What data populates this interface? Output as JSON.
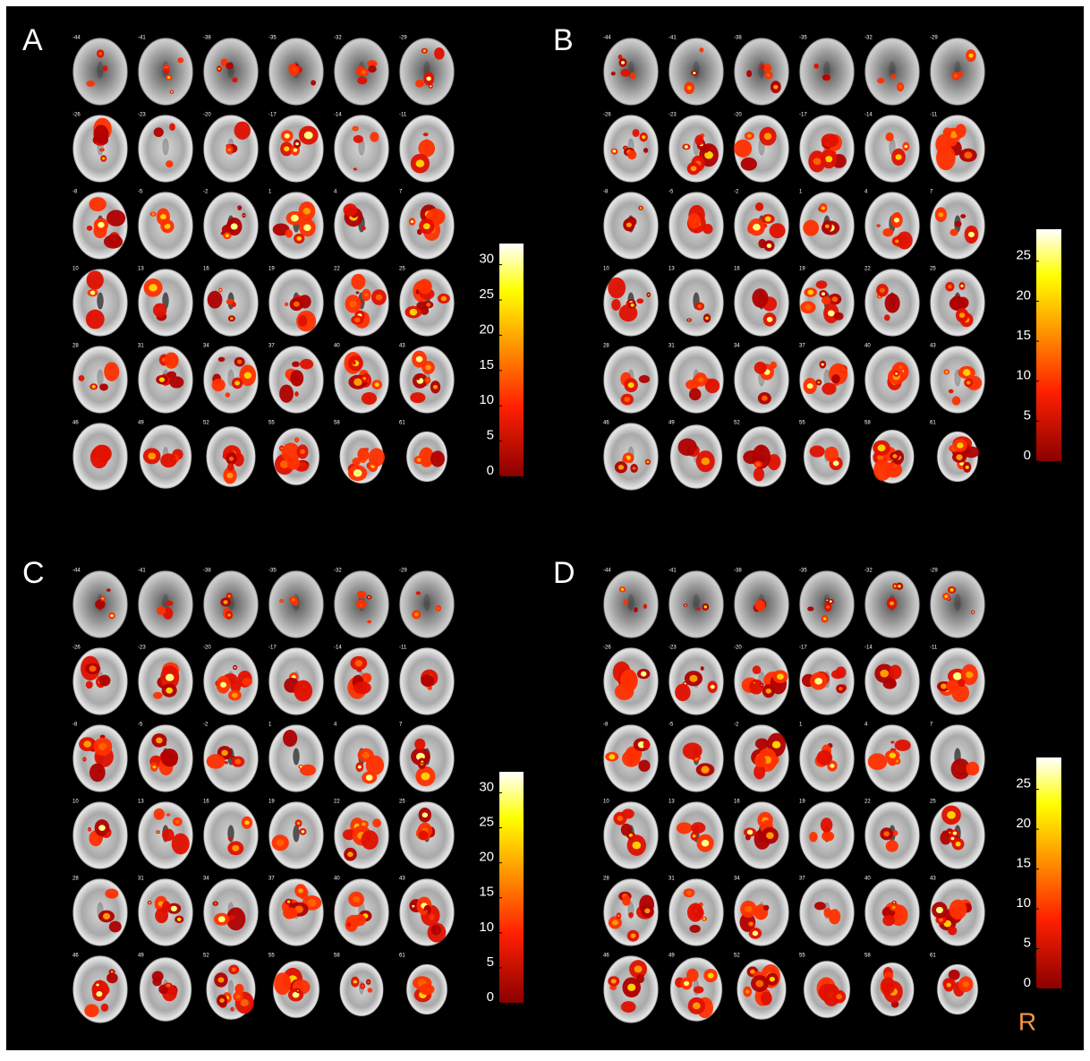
{
  "slices": [
    -44,
    -41,
    -38,
    -35,
    -32,
    -29,
    -26,
    -23,
    -20,
    -17,
    -14,
    -11,
    -8,
    -5,
    -2,
    1,
    4,
    7,
    10,
    13,
    16,
    19,
    22,
    25,
    28,
    31,
    34,
    37,
    40,
    43,
    46,
    49,
    52,
    55,
    58,
    61
  ],
  "panels": [
    {
      "label": "A",
      "colorbar": {
        "lim": [
          0,
          33
        ],
        "ticks": [
          0,
          5,
          10,
          15,
          20,
          25,
          30
        ]
      }
    },
    {
      "label": "B",
      "colorbar": {
        "lim": [
          0,
          29
        ],
        "ticks": [
          0,
          5,
          10,
          15,
          20,
          25
        ]
      }
    },
    {
      "label": "C",
      "colorbar": {
        "lim": [
          0,
          33
        ],
        "ticks": [
          0,
          5,
          10,
          15,
          20,
          25,
          30
        ]
      }
    },
    {
      "label": "D",
      "colorbar": {
        "lim": [
          0,
          29
        ],
        "ticks": [
          0,
          5,
          10,
          15,
          20,
          25
        ]
      }
    }
  ],
  "orientation_label": "R"
}
